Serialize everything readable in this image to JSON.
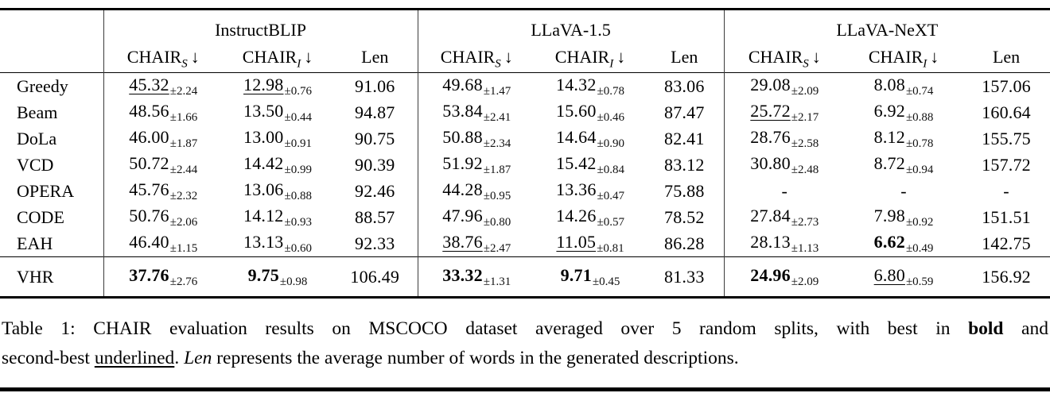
{
  "table": {
    "groups": [
      "InstructBLIP",
      "LLaVA-1.5",
      "LLaVA-NeXT"
    ],
    "metric_headers": [
      {
        "main": "CHAIR",
        "sub": "S",
        "arrow": "↓"
      },
      {
        "main": "CHAIR",
        "sub": "I",
        "arrow": "↓"
      },
      {
        "main": "Len"
      }
    ],
    "rows": [
      {
        "label": "Greedy",
        "cells": [
          {
            "v": "45.32",
            "pm": "2.24",
            "style": "underline"
          },
          {
            "v": "12.98",
            "pm": "0.76",
            "style": "underline"
          },
          {
            "v": "91.06"
          },
          {
            "v": "49.68",
            "pm": "1.47"
          },
          {
            "v": "14.32",
            "pm": "0.78"
          },
          {
            "v": "83.06"
          },
          {
            "v": "29.08",
            "pm": "2.09"
          },
          {
            "v": "8.08",
            "pm": "0.74"
          },
          {
            "v": "157.06"
          }
        ]
      },
      {
        "label": "Beam",
        "cells": [
          {
            "v": "48.56",
            "pm": "1.66"
          },
          {
            "v": "13.50",
            "pm": "0.44"
          },
          {
            "v": "94.87"
          },
          {
            "v": "53.84",
            "pm": "2.41"
          },
          {
            "v": "15.60",
            "pm": "0.46"
          },
          {
            "v": "87.47"
          },
          {
            "v": "25.72",
            "pm": "2.17",
            "style": "underline"
          },
          {
            "v": "6.92",
            "pm": "0.88"
          },
          {
            "v": "160.64"
          }
        ]
      },
      {
        "label": "DoLa",
        "cells": [
          {
            "v": "46.00",
            "pm": "1.87"
          },
          {
            "v": "13.00",
            "pm": "0.91"
          },
          {
            "v": "90.75"
          },
          {
            "v": "50.88",
            "pm": "2.34"
          },
          {
            "v": "14.64",
            "pm": "0.90"
          },
          {
            "v": "82.41"
          },
          {
            "v": "28.76",
            "pm": "2.58"
          },
          {
            "v": "8.12",
            "pm": "0.78"
          },
          {
            "v": "155.75"
          }
        ]
      },
      {
        "label": "VCD",
        "cells": [
          {
            "v": "50.72",
            "pm": "2.44"
          },
          {
            "v": "14.42",
            "pm": "0.99"
          },
          {
            "v": "90.39"
          },
          {
            "v": "51.92",
            "pm": "1.87"
          },
          {
            "v": "15.42",
            "pm": "0.84"
          },
          {
            "v": "83.12"
          },
          {
            "v": "30.80",
            "pm": "2.48"
          },
          {
            "v": "8.72",
            "pm": "0.94"
          },
          {
            "v": "157.72"
          }
        ]
      },
      {
        "label": "OPERA",
        "cells": [
          {
            "v": "45.76",
            "pm": "2.32"
          },
          {
            "v": "13.06",
            "pm": "0.88"
          },
          {
            "v": "92.46"
          },
          {
            "v": "44.28",
            "pm": "0.95"
          },
          {
            "v": "13.36",
            "pm": "0.47"
          },
          {
            "v": "75.88"
          },
          {
            "v": "-"
          },
          {
            "v": "-"
          },
          {
            "v": "-"
          }
        ]
      },
      {
        "label": "CODE",
        "cells": [
          {
            "v": "50.76",
            "pm": "2.06"
          },
          {
            "v": "14.12",
            "pm": "0.93"
          },
          {
            "v": "88.57"
          },
          {
            "v": "47.96",
            "pm": "0.80"
          },
          {
            "v": "14.26",
            "pm": "0.57"
          },
          {
            "v": "78.52"
          },
          {
            "v": "27.84",
            "pm": "2.73"
          },
          {
            "v": "7.98",
            "pm": "0.92"
          },
          {
            "v": "151.51"
          }
        ]
      },
      {
        "label": "EAH",
        "cells": [
          {
            "v": "46.40",
            "pm": "1.15"
          },
          {
            "v": "13.13",
            "pm": "0.60"
          },
          {
            "v": "92.33"
          },
          {
            "v": "38.76",
            "pm": "2.47",
            "style": "underline"
          },
          {
            "v": "11.05",
            "pm": "0.81",
            "style": "underline"
          },
          {
            "v": "86.28"
          },
          {
            "v": "28.13",
            "pm": "1.13"
          },
          {
            "v": "6.62",
            "pm": "0.49",
            "style": "bold"
          },
          {
            "v": "142.75"
          }
        ]
      }
    ],
    "final_row": {
      "label": "VHR",
      "cells": [
        {
          "v": "37.76",
          "pm": "2.76",
          "style": "bold"
        },
        {
          "v": "9.75",
          "pm": "0.98",
          "style": "bold"
        },
        {
          "v": "106.49"
        },
        {
          "v": "33.32",
          "pm": "1.31",
          "style": "bold"
        },
        {
          "v": "9.71",
          "pm": "0.45",
          "style": "bold"
        },
        {
          "v": "81.33"
        },
        {
          "v": "24.96",
          "pm": "2.09",
          "style": "bold"
        },
        {
          "v": "6.80",
          "pm": "0.59",
          "style": "underline"
        },
        {
          "v": "156.92"
        }
      ]
    }
  },
  "caption": {
    "lines": [
      [
        {
          "text": "Table 1: CHAIR evaluation results on MSCOCO dataset averaged over 5 random splits, with best in "
        },
        {
          "text": "bold",
          "style": "bold"
        },
        {
          "text": " and"
        }
      ],
      [
        {
          "text": "second-best "
        },
        {
          "text": "underlined",
          "style": "underline"
        },
        {
          "text": ". "
        },
        {
          "text": "Len",
          "style": "italic"
        },
        {
          "text": " represents the average number of words in the generated descriptions."
        }
      ]
    ]
  }
}
